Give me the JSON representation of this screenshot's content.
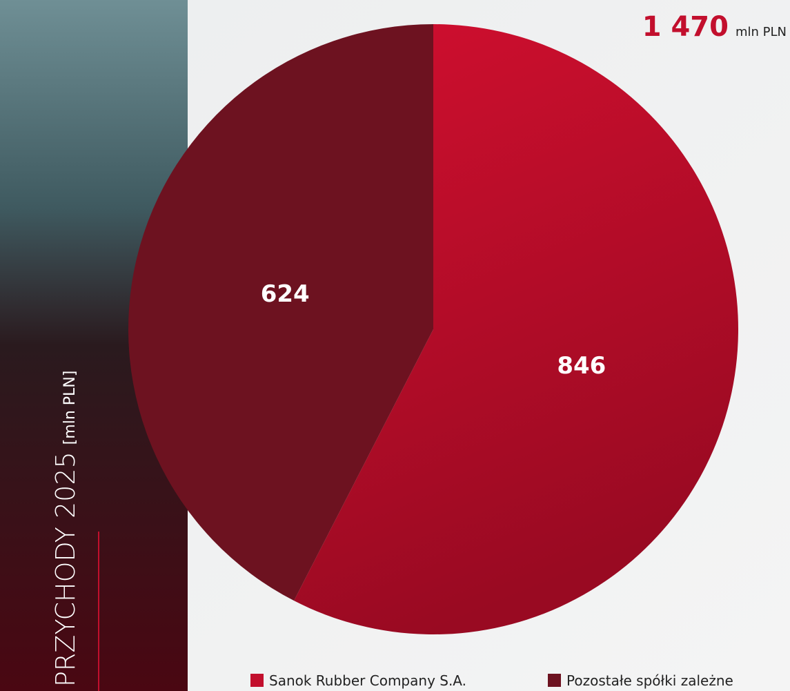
{
  "chart_data": {
    "type": "pie",
    "title": "PRZYCHODY 2025",
    "subtitle": "[mln PLN]",
    "total": {
      "value": 1470,
      "label": "1 470"
    },
    "total_unit": "mln PLN",
    "categories": [
      "Sanok Rubber Company S.A.",
      "Pozostałe spółki zależne"
    ],
    "values": [
      846,
      624
    ],
    "colors": [
      "#c20f2d",
      "#6d1220"
    ]
  }
}
